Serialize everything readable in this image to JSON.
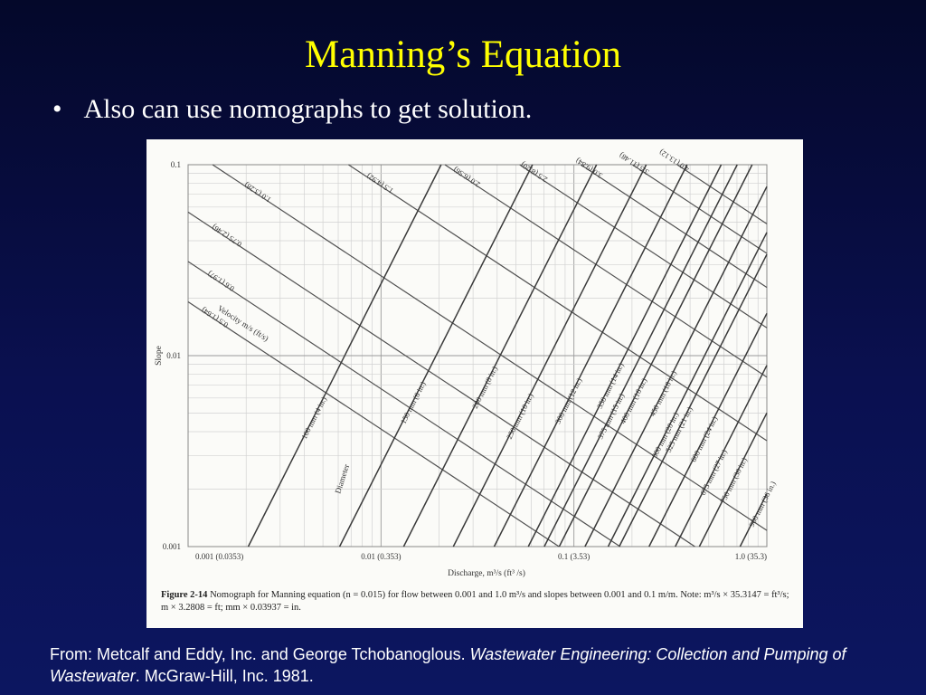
{
  "slide": {
    "title": "Manning’s Equation",
    "bullet_symbol": "•",
    "bullet": "Also can use nomographs to get solution."
  },
  "source": {
    "prefix": "From: Metcalf and Eddy, Inc. and George Tchobanoglous. ",
    "book": "Wastewater Engineering: Collection and Pumping of Wastewater",
    "suffix": ". McGraw-Hill, Inc. 1981."
  },
  "caption": {
    "label": "Figure 2-14",
    "text": "Nomograph for Manning equation (n = 0.015) for flow between 0.001 and 1.0 m³/s and slopes between 0.001 and 0.1 m/m. Note: m³/s × 35.3147 = ft³/s; m × 3.2808 = ft; mm × 0.03937 = in."
  },
  "chart_data": {
    "type": "nomograph",
    "xlabel": "Discharge, m³/s (ft³ /s)",
    "ylabel": "Slope",
    "xscale": "log",
    "yscale": "log",
    "xlim": [
      0.001,
      1.0
    ],
    "ylim": [
      0.001,
      0.1
    ],
    "x_ticks": [
      "0.001 (0.0353)",
      "0.01 (0.353)",
      "0.1 (3.53)",
      "1.0 (35.3)"
    ],
    "y_ticks": [
      "0.1",
      "0.01",
      "0.001"
    ],
    "diameter_title": "Diameter",
    "velocity_title": "Velocity m/s (ft/s)",
    "diameter_lines": [
      {
        "label": "100 mm (4 in.)",
        "Q_at_slope_0_001": 0.00205
      },
      {
        "label": "150 mm (6 in.)",
        "Q_at_slope_0_001": 0.0061
      },
      {
        "label": "200 mm (8 in.)",
        "Q_at_slope_0_001": 0.0131
      },
      {
        "label": "250 mm (10 in.)",
        "Q_at_slope_0_001": 0.0237
      },
      {
        "label": "300 mm (12 in.)",
        "Q_at_slope_0_001": 0.0386
      },
      {
        "label": "350 mm (14 in.)",
        "Q_at_slope_0_001": 0.058
      },
      {
        "label": "375 mm (15 in.)",
        "Q_at_slope_0_001": 0.0702
      },
      {
        "label": "400 mm (16 in.)",
        "Q_at_slope_0_001": 0.0839
      },
      {
        "label": "450 mm (18 in.)",
        "Q_at_slope_0_001": 0.1141
      },
      {
        "label": "500 mm (20 in.)",
        "Q_at_slope_0_001": 0.1504
      },
      {
        "label": "525 mm (21 in.)",
        "Q_at_slope_0_001": 0.1717
      },
      {
        "label": "600 mm (24 in.)",
        "Q_at_slope_0_001": 0.2451
      },
      {
        "label": "675 mm (27 in.)",
        "Q_at_slope_0_001": 0.3352
      },
      {
        "label": "750 mm (30 in.)",
        "Q_at_slope_0_001": 0.4468
      },
      {
        "label": "900 mm (36 in.)",
        "Q_at_slope_0_001": 0.7265
      },
      {
        "label": "1,050 mm (42 in.)",
        "Q_at_slope_0_001": 1.096
      }
    ],
    "velocity_lines": [
      {
        "label": "0.5 (1.64)",
        "value_m_s": 0.5
      },
      {
        "label": "0.6 (1.97)",
        "value_m_s": 0.6
      },
      {
        "label": "0.75 (2.46)",
        "value_m_s": 0.75
      },
      {
        "label": "1.0 (3.28)",
        "value_m_s": 1.0
      },
      {
        "label": "1.5 (4.92)",
        "value_m_s": 1.5
      },
      {
        "label": "2.0 (6.56)",
        "value_m_s": 2.0
      },
      {
        "label": "2.5 (8.20)",
        "value_m_s": 2.5
      },
      {
        "label": "3.0 (9.84)",
        "value_m_s": 3.0
      },
      {
        "label": "3.5 (11.48)",
        "value_m_s": 3.5
      },
      {
        "label": "4.0 (13.12)",
        "value_m_s": 4.0
      }
    ]
  }
}
